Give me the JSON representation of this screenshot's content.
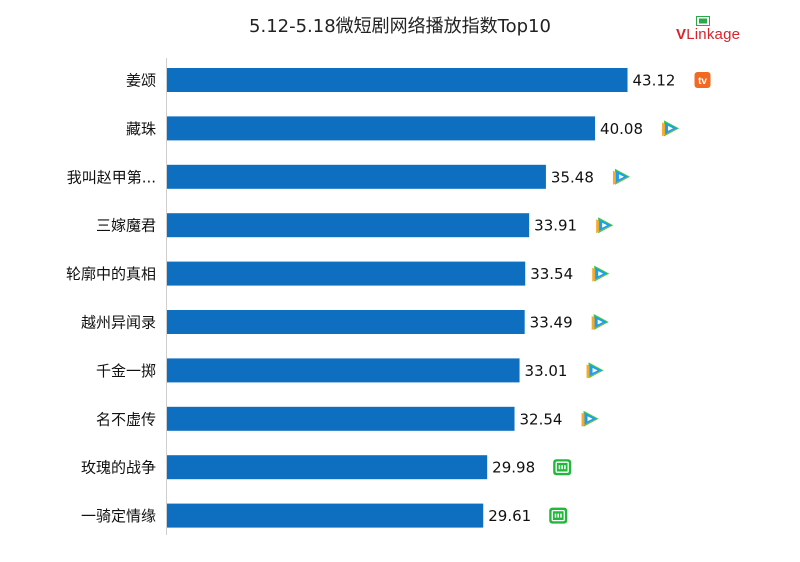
{
  "title": "5.12-5.18微短剧网络播放指数Top10",
  "logo": {
    "v": "V",
    "rest": "Linkage"
  },
  "chart_data": {
    "type": "bar",
    "orientation": "horizontal",
    "title": "5.12-5.18微短剧网络播放指数Top10",
    "categories": [
      "姜颂",
      "藏珠",
      "我叫赵甲第...",
      "三嫁魔君",
      "轮廓中的真相",
      "越州异闻录",
      "千金一掷",
      "名不虚传",
      "玫瑰的战争",
      "一骑定情缘"
    ],
    "values": [
      43.12,
      40.08,
      35.48,
      33.91,
      33.54,
      33.49,
      33.01,
      32.54,
      29.98,
      29.61
    ],
    "value_labels": [
      "43.12",
      "40.08",
      "35.48",
      "33.91",
      "33.54",
      "33.49",
      "33.01",
      "32.54",
      "29.98",
      "29.61"
    ],
    "platform_icons": [
      "mango-tv-icon",
      "tencent-video-icon",
      "tencent-video-icon",
      "tencent-video-icon",
      "tencent-video-icon",
      "tencent-video-icon",
      "tencent-video-icon",
      "tencent-video-icon",
      "iqiyi-icon",
      "iqiyi-icon"
    ],
    "bar_color": "#0e6fc0",
    "xlim": [
      0,
      45
    ],
    "grid": false,
    "legend": "none"
  },
  "colors": {
    "bar": "#0e6fc0",
    "mango": "#f26a21",
    "iqiyi": "#20b93c",
    "tencent_blue": "#1a9ff0",
    "tencent_green": "#3cc84a",
    "tencent_orange": "#f5a623"
  }
}
